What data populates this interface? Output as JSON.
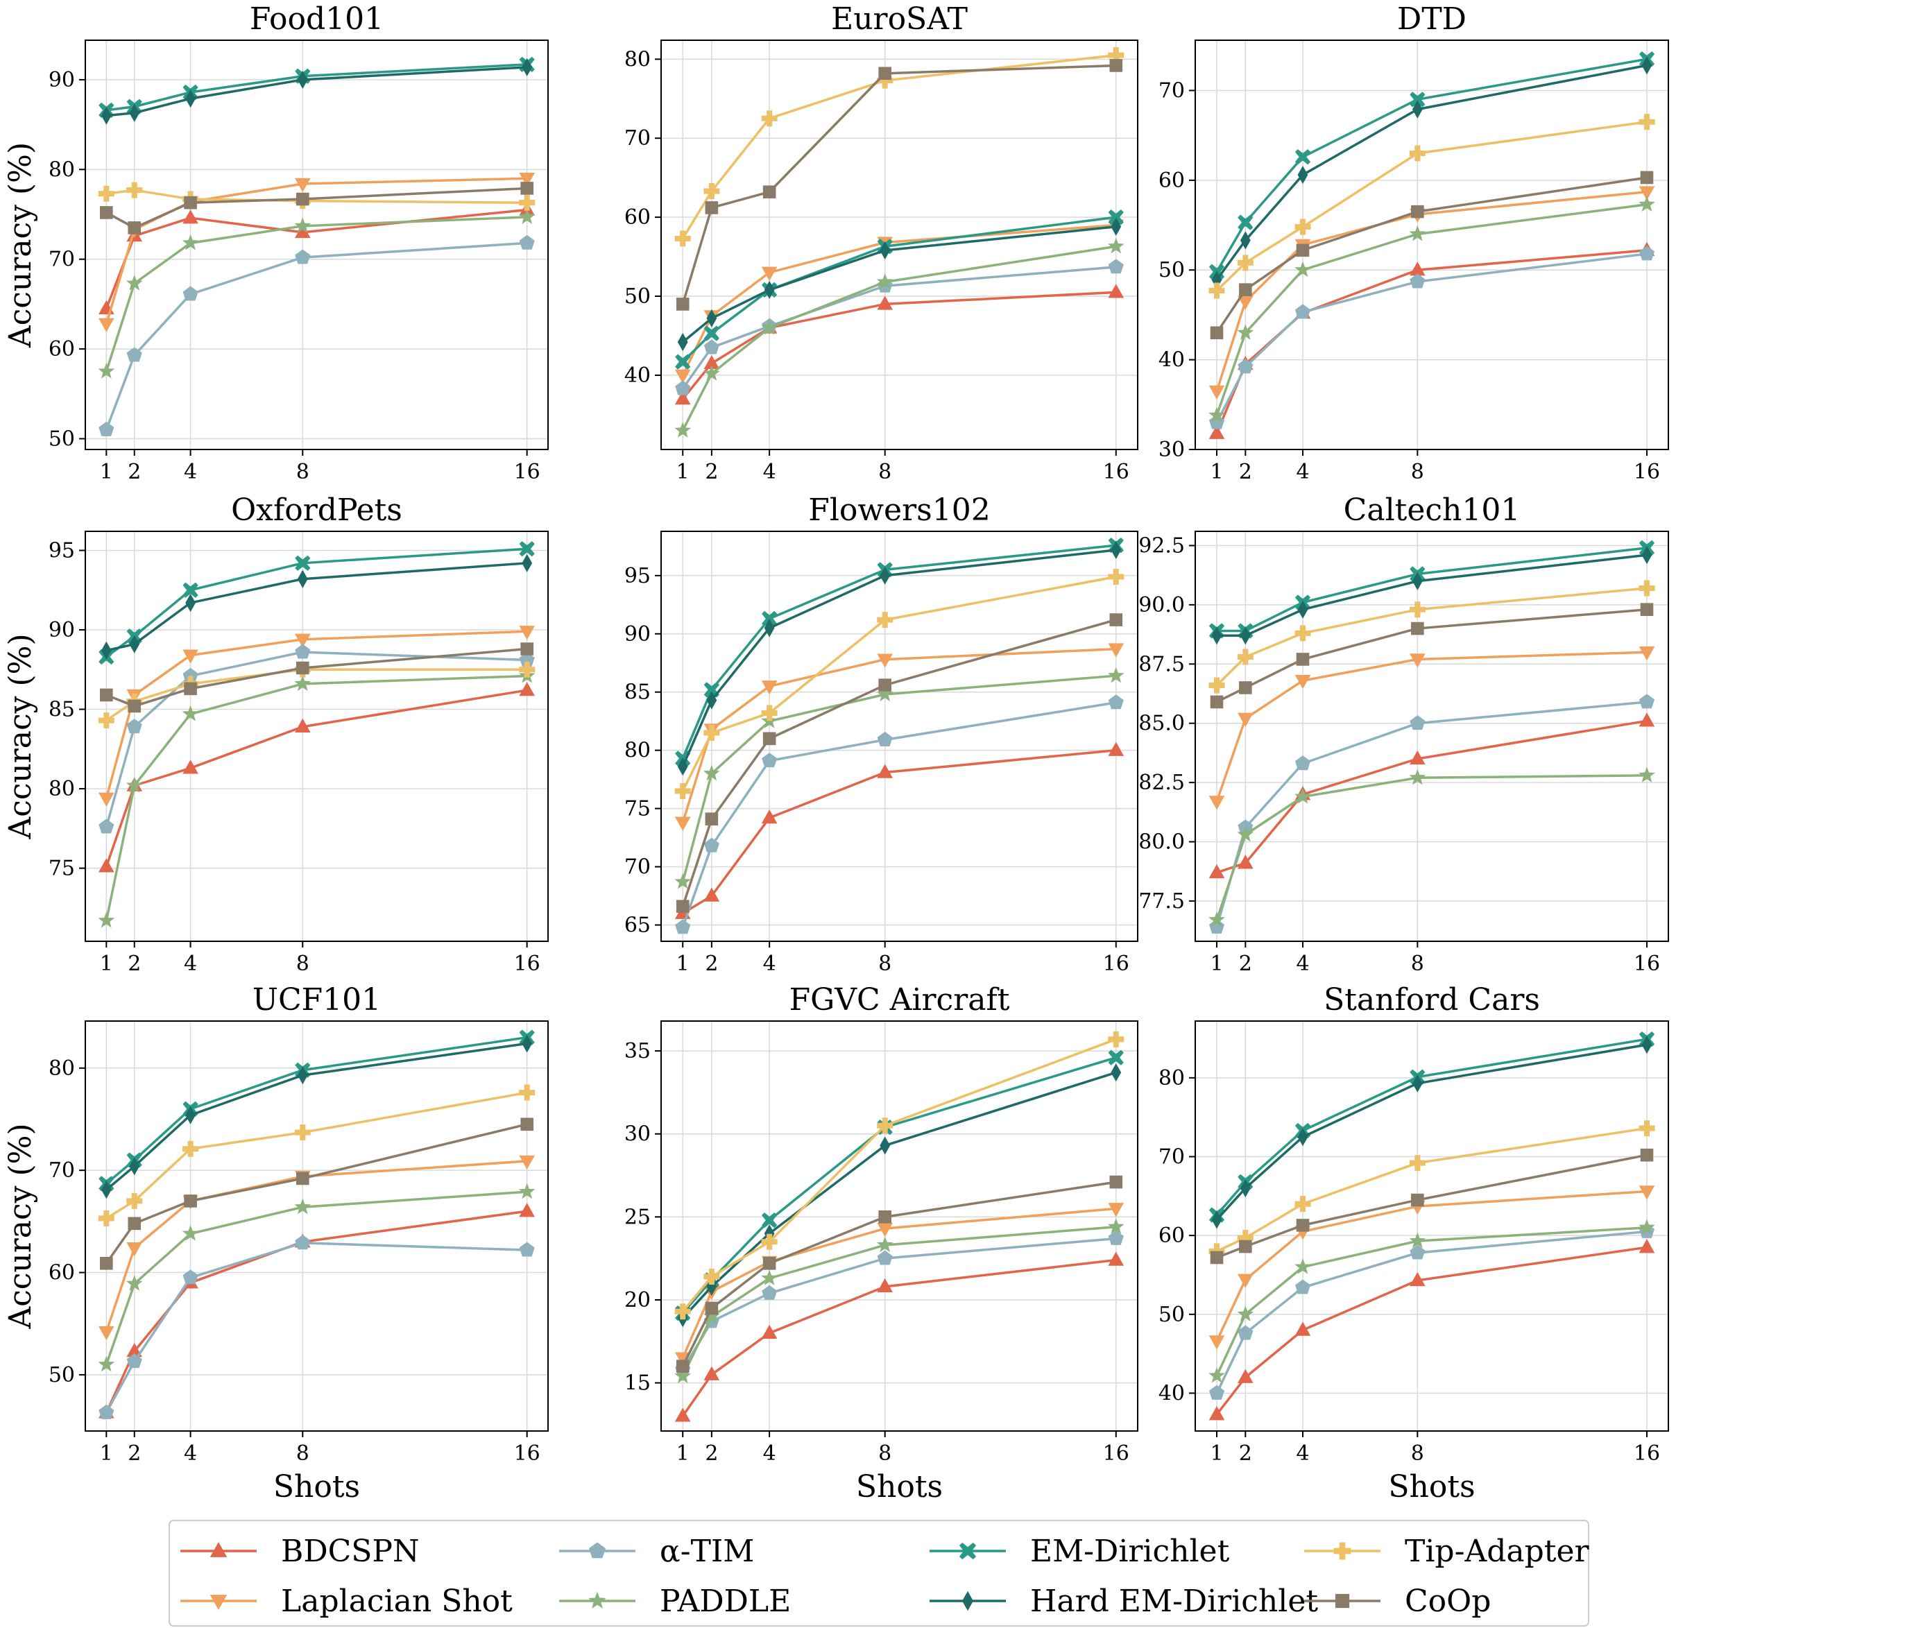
{
  "figure": {
    "ylabel": "Accuracy (%)",
    "xlabel": "Shots"
  },
  "legend": [
    {
      "name": "BDCSPN",
      "color": "#e2654a",
      "marker": "triangle-up"
    },
    {
      "name": "Laplacian Shot",
      "color": "#f0a05a",
      "marker": "triangle-down"
    },
    {
      "name": "α-TIM",
      "color": "#8fb0bd",
      "marker": "pentagon"
    },
    {
      "name": "PADDLE",
      "color": "#8bb27a",
      "marker": "star"
    },
    {
      "name": "EM-Dirichlet",
      "color": "#2a9a87",
      "marker": "x"
    },
    {
      "name": "Hard EM-Dirichlet",
      "color": "#1d6a66",
      "marker": "diamond"
    },
    {
      "name": "Tip-Adapter",
      "color": "#eec066",
      "marker": "plus"
    },
    {
      "name": "CoOp",
      "color": "#8a7b68",
      "marker": "square"
    }
  ],
  "chart_data": [
    {
      "type": "line",
      "title": "Food101",
      "xlabel": "",
      "ylabel": "Accuracy (%)",
      "x": [
        1,
        2,
        4,
        8,
        16
      ],
      "ylim": [
        48.8,
        94.4
      ],
      "yticks": [
        50,
        60,
        70,
        80,
        90
      ],
      "ytick_labels": [
        "50",
        "60",
        "70",
        "80",
        "90"
      ],
      "series": [
        {
          "name": "BDCSPN",
          "values": [
            64.5,
            72.6,
            74.6,
            73.0,
            75.5
          ]
        },
        {
          "name": "Laplacian Shot",
          "values": [
            62.8,
            73.3,
            76.4,
            78.4,
            79.0
          ]
        },
        {
          "name": "α-TIM",
          "values": [
            51.0,
            59.3,
            66.1,
            70.2,
            71.8
          ]
        },
        {
          "name": "PADDLE",
          "values": [
            57.5,
            67.3,
            71.8,
            73.7,
            74.7
          ]
        },
        {
          "name": "EM-Dirichlet",
          "values": [
            86.6,
            87.0,
            88.6,
            90.4,
            91.7
          ]
        },
        {
          "name": "Hard EM-Dirichlet",
          "values": [
            86.0,
            86.3,
            87.9,
            90.0,
            91.4
          ]
        },
        {
          "name": "Tip-Adapter",
          "values": [
            77.3,
            77.7,
            76.7,
            76.5,
            76.3
          ]
        },
        {
          "name": "CoOp",
          "values": [
            75.2,
            73.5,
            76.3,
            76.7,
            77.9
          ]
        }
      ]
    },
    {
      "type": "line",
      "title": "EuroSAT",
      "xlabel": "",
      "ylabel": "",
      "x": [
        1,
        2,
        4,
        8,
        16
      ],
      "ylim": [
        30.6,
        82.4
      ],
      "yticks": [
        40,
        50,
        60,
        70,
        80
      ],
      "ytick_labels": [
        "40",
        "50",
        "60",
        "70",
        "80"
      ],
      "series": [
        {
          "name": "BDCSPN",
          "values": [
            37.0,
            41.5,
            46.0,
            49.0,
            50.5
          ]
        },
        {
          "name": "Laplacian Shot",
          "values": [
            40.0,
            47.5,
            53.0,
            56.8,
            59.0
          ]
        },
        {
          "name": "α-TIM",
          "values": [
            38.3,
            43.5,
            46.2,
            51.3,
            53.7
          ]
        },
        {
          "name": "PADDLE",
          "values": [
            33.0,
            40.2,
            46.0,
            51.8,
            56.3
          ]
        },
        {
          "name": "EM-Dirichlet",
          "values": [
            41.7,
            45.3,
            50.8,
            56.3,
            60.0
          ]
        },
        {
          "name": "Hard EM-Dirichlet",
          "values": [
            44.2,
            47.2,
            50.8,
            55.8,
            58.8
          ]
        },
        {
          "name": "Tip-Adapter",
          "values": [
            57.3,
            63.3,
            72.5,
            77.3,
            80.5
          ]
        },
        {
          "name": "CoOp",
          "values": [
            49.0,
            61.2,
            63.2,
            78.2,
            79.2
          ]
        }
      ]
    },
    {
      "type": "line",
      "title": "DTD",
      "xlabel": "",
      "ylabel": "",
      "x": [
        1,
        2,
        4,
        8,
        16
      ],
      "ylim": [
        30.0,
        75.6
      ],
      "yticks": [
        30,
        40,
        50,
        60,
        70
      ],
      "ytick_labels": [
        "30",
        "40",
        "50",
        "60",
        "70"
      ],
      "series": [
        {
          "name": "BDCSPN",
          "values": [
            31.8,
            39.5,
            45.2,
            50.0,
            52.2
          ]
        },
        {
          "name": "Laplacian Shot",
          "values": [
            36.5,
            46.5,
            52.8,
            56.2,
            58.7
          ]
        },
        {
          "name": "α-TIM",
          "values": [
            33.0,
            39.2,
            45.3,
            48.7,
            51.8
          ]
        },
        {
          "name": "PADDLE",
          "values": [
            33.8,
            43.0,
            50.0,
            54.0,
            57.3
          ]
        },
        {
          "name": "EM-Dirichlet",
          "values": [
            49.8,
            55.3,
            62.6,
            69.0,
            73.5
          ]
        },
        {
          "name": "Hard EM-Dirichlet",
          "values": [
            48.9,
            53.3,
            60.6,
            67.9,
            72.8
          ]
        },
        {
          "name": "Tip-Adapter",
          "values": [
            47.7,
            50.8,
            54.8,
            63.0,
            66.5
          ]
        },
        {
          "name": "CoOp",
          "values": [
            43.0,
            47.8,
            52.2,
            56.5,
            60.3
          ]
        }
      ]
    },
    {
      "type": "line",
      "title": "OxfordPets",
      "xlabel": "",
      "ylabel": "Accuracy (%)",
      "x": [
        1,
        2,
        4,
        8,
        16
      ],
      "ylim": [
        70.4,
        96.2
      ],
      "yticks": [
        75,
        80,
        85,
        90,
        95
      ],
      "ytick_labels": [
        "75",
        "80",
        "85",
        "90",
        "95"
      ],
      "series": [
        {
          "name": "BDCSPN",
          "values": [
            75.1,
            80.2,
            81.3,
            83.9,
            86.2
          ]
        },
        {
          "name": "Laplacian Shot",
          "values": [
            79.4,
            85.9,
            88.4,
            89.4,
            89.9
          ]
        },
        {
          "name": "α-TIM",
          "values": [
            77.6,
            83.9,
            87.1,
            88.6,
            88.1
          ]
        },
        {
          "name": "PADDLE",
          "values": [
            71.7,
            80.2,
            84.7,
            86.6,
            87.1
          ]
        },
        {
          "name": "EM-Dirichlet",
          "values": [
            88.3,
            89.6,
            92.5,
            94.2,
            95.1
          ]
        },
        {
          "name": "Hard EM-Dirichlet",
          "values": [
            88.7,
            89.1,
            91.7,
            93.2,
            94.2
          ]
        },
        {
          "name": "Tip-Adapter",
          "values": [
            84.3,
            85.5,
            86.6,
            87.5,
            87.5
          ]
        },
        {
          "name": "CoOp",
          "values": [
            85.9,
            85.2,
            86.3,
            87.6,
            88.8
          ]
        }
      ]
    },
    {
      "type": "line",
      "title": "Flowers102",
      "xlabel": "",
      "ylabel": "",
      "x": [
        1,
        2,
        4,
        8,
        16
      ],
      "ylim": [
        63.6,
        98.8
      ],
      "yticks": [
        65,
        70,
        75,
        80,
        85,
        90,
        95
      ],
      "ytick_labels": [
        "65",
        "70",
        "75",
        "80",
        "85",
        "90",
        "95"
      ],
      "series": [
        {
          "name": "BDCSPN",
          "values": [
            66.0,
            67.5,
            74.2,
            78.1,
            80.0
          ]
        },
        {
          "name": "Laplacian Shot",
          "values": [
            73.8,
            81.8,
            85.5,
            87.8,
            88.7
          ]
        },
        {
          "name": "α-TIM",
          "values": [
            64.8,
            71.8,
            79.1,
            80.9,
            84.1
          ]
        },
        {
          "name": "PADDLE",
          "values": [
            68.7,
            78.0,
            82.5,
            84.8,
            86.4
          ]
        },
        {
          "name": "EM-Dirichlet",
          "values": [
            79.3,
            85.2,
            91.3,
            95.5,
            97.6
          ]
        },
        {
          "name": "Hard EM-Dirichlet",
          "values": [
            78.6,
            84.3,
            90.5,
            95.0,
            97.2
          ]
        },
        {
          "name": "Tip-Adapter",
          "values": [
            76.5,
            81.5,
            83.2,
            91.2,
            94.9
          ]
        },
        {
          "name": "CoOp",
          "values": [
            66.6,
            74.1,
            81.0,
            85.6,
            91.2
          ]
        }
      ]
    },
    {
      "type": "line",
      "title": "Caltech101",
      "xlabel": "",
      "ylabel": "",
      "x": [
        1,
        2,
        4,
        8,
        16
      ],
      "ylim": [
        75.8,
        93.1
      ],
      "yticks": [
        77.5,
        80.0,
        82.5,
        85.0,
        87.5,
        90.0,
        92.5
      ],
      "ytick_labels": [
        "77.5",
        "80.0",
        "82.5",
        "85.0",
        "87.5",
        "90.0",
        "92.5"
      ],
      "series": [
        {
          "name": "BDCSPN",
          "values": [
            78.7,
            79.1,
            82.0,
            83.5,
            85.1
          ]
        },
        {
          "name": "Laplacian Shot",
          "values": [
            81.7,
            85.2,
            86.8,
            87.7,
            88.0
          ]
        },
        {
          "name": "α-TIM",
          "values": [
            76.4,
            80.6,
            83.3,
            85.0,
            85.9
          ]
        },
        {
          "name": "PADDLE",
          "values": [
            76.7,
            80.3,
            81.9,
            82.7,
            82.8
          ]
        },
        {
          "name": "EM-Dirichlet",
          "values": [
            88.9,
            88.9,
            90.1,
            91.3,
            92.4
          ]
        },
        {
          "name": "Hard EM-Dirichlet",
          "values": [
            88.7,
            88.7,
            89.8,
            91.0,
            92.1
          ]
        },
        {
          "name": "Tip-Adapter",
          "values": [
            86.6,
            87.8,
            88.8,
            89.8,
            90.7
          ]
        },
        {
          "name": "CoOp",
          "values": [
            85.9,
            86.5,
            87.7,
            89.0,
            89.8
          ]
        }
      ]
    },
    {
      "type": "line",
      "title": "UCF101",
      "xlabel": "Shots",
      "ylabel": "Accuracy (%)",
      "x": [
        1,
        2,
        4,
        8,
        16
      ],
      "ylim": [
        44.5,
        84.6
      ],
      "yticks": [
        50,
        60,
        70,
        80
      ],
      "ytick_labels": [
        "50",
        "60",
        "70",
        "80"
      ],
      "series": [
        {
          "name": "BDCSPN",
          "values": [
            46.3,
            52.3,
            59.0,
            63.0,
            66.0
          ]
        },
        {
          "name": "Laplacian Shot",
          "values": [
            54.2,
            62.4,
            67.0,
            69.4,
            70.9
          ]
        },
        {
          "name": "α-TIM",
          "values": [
            46.3,
            51.3,
            59.5,
            62.9,
            62.2
          ]
        },
        {
          "name": "PADDLE",
          "values": [
            51.0,
            58.9,
            63.8,
            66.4,
            67.9
          ]
        },
        {
          "name": "EM-Dirichlet",
          "values": [
            68.7,
            71.0,
            76.0,
            79.8,
            83.0
          ]
        },
        {
          "name": "Hard EM-Dirichlet",
          "values": [
            68.1,
            70.4,
            75.4,
            79.3,
            82.4
          ]
        },
        {
          "name": "Tip-Adapter",
          "values": [
            65.3,
            67.0,
            72.1,
            73.7,
            77.6
          ]
        },
        {
          "name": "CoOp",
          "values": [
            60.9,
            64.8,
            67.0,
            69.2,
            74.5
          ]
        }
      ]
    },
    {
      "type": "line",
      "title": "FGVC Aircraft",
      "xlabel": "Shots",
      "ylabel": "",
      "x": [
        1,
        2,
        4,
        8,
        16
      ],
      "ylim": [
        12.1,
        36.8
      ],
      "yticks": [
        15,
        20,
        25,
        30,
        35
      ],
      "ytick_labels": [
        "15",
        "20",
        "25",
        "30",
        "35"
      ],
      "series": [
        {
          "name": "BDCSPN",
          "values": [
            13.0,
            15.5,
            18.0,
            20.8,
            22.4
          ]
        },
        {
          "name": "Laplacian Shot",
          "values": [
            16.5,
            20.5,
            22.3,
            24.3,
            25.5
          ]
        },
        {
          "name": "α-TIM",
          "values": [
            15.8,
            18.7,
            20.4,
            22.5,
            23.7
          ]
        },
        {
          "name": "PADDLE",
          "values": [
            15.4,
            19.0,
            21.3,
            23.3,
            24.4
          ]
        },
        {
          "name": "EM-Dirichlet",
          "values": [
            19.2,
            21.2,
            24.8,
            30.4,
            34.6
          ]
        },
        {
          "name": "Hard EM-Dirichlet",
          "values": [
            18.9,
            20.8,
            24.0,
            29.3,
            33.7
          ]
        },
        {
          "name": "Tip-Adapter",
          "values": [
            19.3,
            21.4,
            23.5,
            30.5,
            35.7
          ]
        },
        {
          "name": "CoOp",
          "values": [
            16.0,
            19.5,
            22.2,
            25.0,
            27.1
          ]
        }
      ]
    },
    {
      "type": "line",
      "title": "Stanford Cars",
      "xlabel": "Shots",
      "ylabel": "",
      "x": [
        1,
        2,
        4,
        8,
        16
      ],
      "ylim": [
        35.2,
        87.2
      ],
      "yticks": [
        40,
        50,
        60,
        70,
        80
      ],
      "ytick_labels": [
        "40",
        "50",
        "60",
        "70",
        "80"
      ],
      "series": [
        {
          "name": "BDCSPN",
          "values": [
            37.3,
            42.0,
            48.0,
            54.3,
            58.5
          ]
        },
        {
          "name": "Laplacian Shot",
          "values": [
            46.6,
            54.4,
            60.5,
            63.7,
            65.6
          ]
        },
        {
          "name": "α-TIM",
          "values": [
            40.0,
            47.6,
            53.4,
            57.8,
            60.5
          ]
        },
        {
          "name": "PADDLE",
          "values": [
            42.2,
            50.0,
            56.0,
            59.3,
            61.0
          ]
        },
        {
          "name": "EM-Dirichlet",
          "values": [
            62.6,
            66.8,
            73.3,
            80.1,
            84.9
          ]
        },
        {
          "name": "Hard EM-Dirichlet",
          "values": [
            62.0,
            66.0,
            72.5,
            79.3,
            84.2
          ]
        },
        {
          "name": "Tip-Adapter",
          "values": [
            58.0,
            59.7,
            64.0,
            69.2,
            73.6
          ]
        },
        {
          "name": "CoOp",
          "values": [
            57.2,
            58.6,
            61.3,
            64.5,
            70.2
          ]
        }
      ]
    }
  ]
}
